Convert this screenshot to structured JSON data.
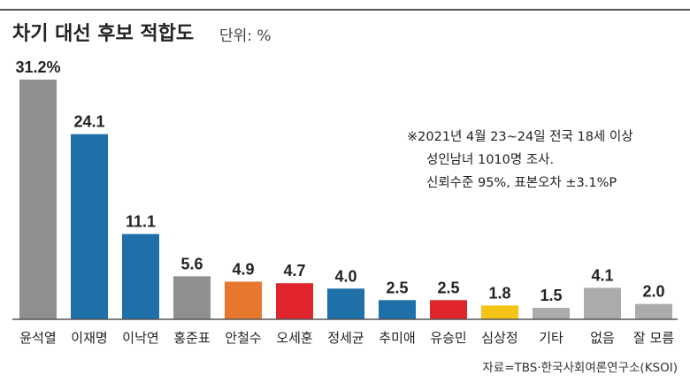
{
  "header": {
    "title": "차기 대선 후보 적합도",
    "unit": "단위: %"
  },
  "note": {
    "line1": "※2021년 4월 23~24일 전국 18세 이상",
    "line2": "성인남녀 1010명 조사.",
    "line3": "신뢰수준 95%, 표본오차 ±3.1%P"
  },
  "source": "자료=TBS·한국사회여론연구소(KSOI)",
  "colors": {
    "gray": "#8f8f8f",
    "blue": "#1f6fa8",
    "orange": "#e8772e",
    "red": "#e0262c",
    "yellow": "#f4c416",
    "lightgray": "#ababab",
    "axis": "#555555"
  },
  "chart_data": {
    "type": "bar",
    "title": "차기 대선 후보 적합도",
    "ylabel": "단위: %",
    "xlabel": "",
    "ylim": [
      0,
      31.2
    ],
    "grid": false,
    "categories": [
      "윤석열",
      "이재명",
      "이낙연",
      "홍준표",
      "안철수",
      "오세훈",
      "정세균",
      "추미애",
      "유승민",
      "심상정",
      "기타",
      "없음",
      "잘 모름"
    ],
    "values": [
      31.2,
      24.1,
      11.1,
      5.6,
      4.9,
      4.7,
      4.0,
      2.5,
      2.5,
      1.8,
      1.5,
      4.1,
      2.0
    ],
    "value_labels": [
      "31.2%",
      "24.1",
      "11.1",
      "5.6",
      "4.9",
      "4.7",
      "4.0",
      "2.5",
      "2.5",
      "1.8",
      "1.5",
      "4.1",
      "2.0"
    ],
    "bar_colors": [
      "#8f8f8f",
      "#1f6fa8",
      "#1f6fa8",
      "#8f8f8f",
      "#e8772e",
      "#e0262c",
      "#1f6fa8",
      "#1f6fa8",
      "#e0262c",
      "#f4c416",
      "#ababab",
      "#ababab",
      "#ababab"
    ]
  }
}
